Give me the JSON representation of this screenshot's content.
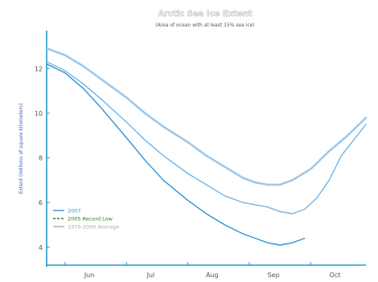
{
  "chart_data": {
    "type": "line",
    "title": "Arctic Sea Ice Extent",
    "subtitle": "(Area of ocean with at least 15% sea ice)",
    "ylabel": "Extent (millions of square kilometers)",
    "y2label": "",
    "x_tick_labels": [
      "Jun",
      "Jul",
      "Aug",
      "Sep",
      "Oct"
    ],
    "y_tick_labels": [
      "4",
      "6",
      "8",
      "10",
      "12"
    ],
    "ylim": [
      3.2,
      13.7
    ],
    "x_unit": "month",
    "xlim": [
      5.7,
      10.9
    ],
    "grid": false,
    "legend_position": "lower-left",
    "series": [
      {
        "name": "1979-2000 Average",
        "color": "#9ec8ea",
        "x": [
          5.7,
          6.0,
          6.3,
          6.6,
          7.0,
          7.3,
          7.6,
          8.0,
          8.3,
          8.6,
          8.9,
          9.1,
          9.3,
          9.5,
          9.7,
          10.0,
          10.3,
          10.6,
          10.9
        ],
        "y": [
          12.9,
          12.6,
          12.1,
          11.5,
          10.7,
          10.0,
          9.4,
          8.7,
          8.1,
          7.6,
          7.1,
          6.9,
          6.8,
          6.8,
          7.0,
          7.5,
          8.3,
          9.0,
          9.8
        ]
      },
      {
        "name": "2005",
        "color": "#6fb6e6",
        "x": [
          5.7,
          6.0,
          6.3,
          6.6,
          7.0,
          7.3,
          7.6,
          8.0,
          8.3,
          8.6,
          8.9,
          9.1,
          9.3,
          9.5,
          9.7,
          9.9,
          10.1,
          10.3,
          10.5,
          10.9
        ],
        "y": [
          12.3,
          11.9,
          11.3,
          10.6,
          9.6,
          8.8,
          8.1,
          7.3,
          6.8,
          6.3,
          6.0,
          5.9,
          5.8,
          5.6,
          5.5,
          5.7,
          6.2,
          7.0,
          8.1,
          9.5
        ]
      },
      {
        "name": "2007",
        "color": "#2b95d9",
        "x": [
          5.7,
          6.0,
          6.3,
          6.6,
          7.0,
          7.3,
          7.6,
          8.0,
          8.3,
          8.6,
          8.9,
          9.1,
          9.3,
          9.5,
          9.7,
          9.9
        ],
        "y": [
          12.2,
          11.8,
          11.1,
          10.2,
          8.9,
          7.9,
          7.0,
          6.1,
          5.5,
          5.0,
          4.6,
          4.4,
          4.2,
          4.1,
          4.2,
          4.4
        ]
      }
    ],
    "legend": [
      {
        "label": "2007",
        "color": "#2b95d9",
        "style": "solid"
      },
      {
        "label": "2005 Record Low",
        "color": "#3d7a2e",
        "style": "dashed"
      },
      {
        "label": "1979-2000 Average",
        "color": "#9ab5a0",
        "style": "solid"
      }
    ]
  },
  "colors": {
    "axis": "#1e9bd7",
    "ytick": "#555555",
    "background": "#ffffff"
  }
}
